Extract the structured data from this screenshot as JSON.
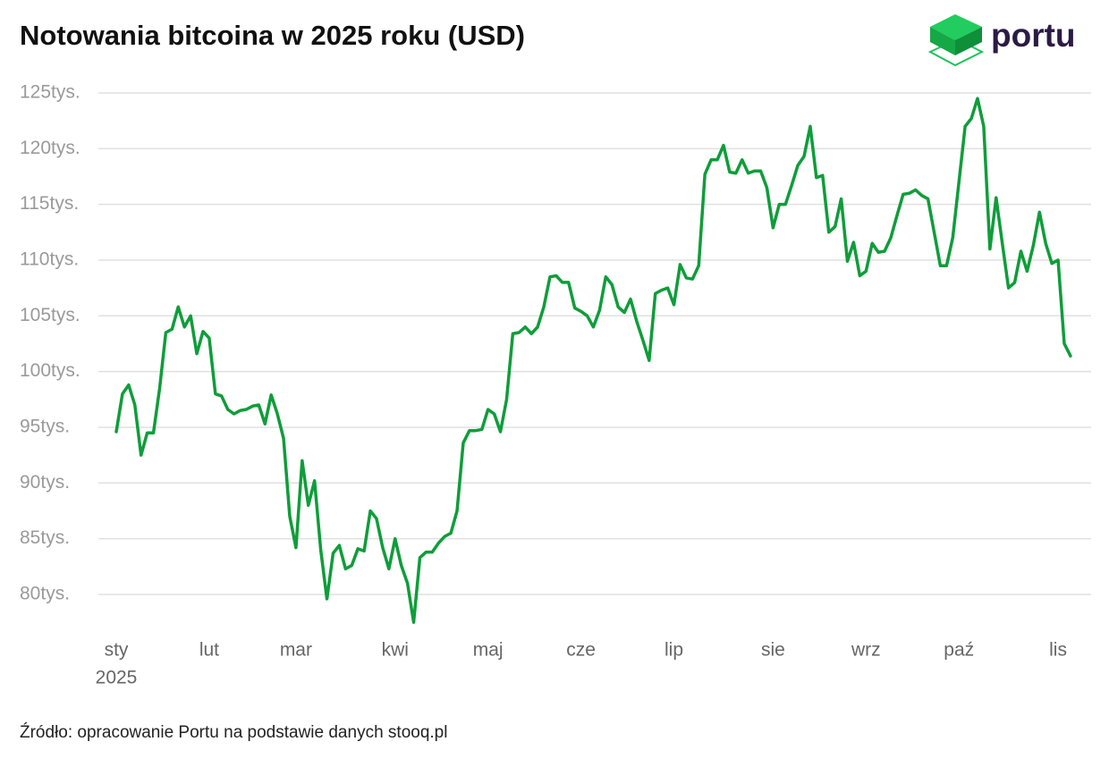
{
  "logo": "portu",
  "chart_data": {
    "type": "line",
    "title": "Notowania bitcoina w 2025 roku (USD)",
    "source": "Źródło: opracowanie Portu na podstawie danych stooq.pl",
    "year_label": "2025",
    "categories": [
      "sty",
      null,
      null,
      null,
      null,
      null,
      null,
      null,
      null,
      null,
      null,
      null,
      null,
      null,
      null,
      "lut",
      null,
      null,
      null,
      null,
      null,
      null,
      null,
      null,
      null,
      null,
      null,
      null,
      null,
      "mar",
      null,
      null,
      null,
      null,
      null,
      null,
      null,
      null,
      null,
      null,
      null,
      null,
      null,
      null,
      null,
      "kwi",
      null,
      null,
      null,
      null,
      null,
      null,
      null,
      null,
      null,
      null,
      null,
      null,
      null,
      null,
      "maj",
      null,
      null,
      null,
      null,
      null,
      null,
      null,
      null,
      null,
      null,
      null,
      null,
      null,
      null,
      "cze",
      null,
      null,
      null,
      null,
      null,
      null,
      null,
      null,
      null,
      null,
      null,
      null,
      null,
      null,
      "lip",
      null,
      null,
      null,
      null,
      null,
      null,
      null,
      null,
      null,
      null,
      null,
      null,
      null,
      null,
      null,
      "sie",
      null,
      null,
      null,
      null,
      null,
      null,
      null,
      null,
      null,
      null,
      null,
      null,
      null,
      null,
      "wrz",
      null,
      null,
      null,
      null,
      null,
      null,
      null,
      null,
      null,
      null,
      null,
      null,
      null,
      null,
      "paź",
      null,
      null,
      null,
      null,
      null,
      null,
      null,
      null,
      null,
      null,
      null,
      null,
      null,
      null,
      null,
      "lis",
      null,
      null
    ],
    "series": [
      {
        "color": "#0f9d3a",
        "values": [
          94600,
          98000,
          98800,
          97000,
          92500,
          94500,
          94500,
          98500,
          103500,
          103800,
          105800,
          104000,
          105000,
          101600,
          103600,
          103000,
          98000,
          97800,
          96600,
          96200,
          96500,
          96600,
          96900,
          97000,
          95300,
          97900,
          96200,
          94000,
          87000,
          84200,
          92000,
          88000,
          90200,
          84000,
          79600,
          83700,
          84400,
          82300,
          82600,
          84100,
          83900,
          87500,
          86800,
          84200,
          82300,
          85000,
          82600,
          81000,
          77500,
          83300,
          83800,
          83800,
          84600,
          85200,
          85500,
          87500,
          93600,
          94700,
          94700,
          94800,
          96600,
          96200,
          94600,
          97500,
          103400,
          103500,
          104000,
          103400,
          104000,
          105800,
          108500,
          108600,
          108000,
          108000,
          105700,
          105400,
          105000,
          104000,
          105500,
          108500,
          107800,
          105800,
          105300,
          106500,
          104500,
          102800,
          101000,
          107000,
          107300,
          107500,
          106000,
          109600,
          108400,
          108300,
          109500,
          117700,
          119000,
          119000,
          120300,
          117900,
          117800,
          119000,
          117800,
          118000,
          118000,
          116500,
          112900,
          115000,
          115000,
          116700,
          118500,
          119300,
          122000,
          117400,
          117600,
          112500,
          113000,
          115500,
          109900,
          111600,
          108600,
          109000,
          111500,
          110700,
          110800,
          112000,
          114000,
          115900,
          116000,
          116300,
          115800,
          115500,
          112500,
          109500,
          109500,
          112000,
          117000,
          122000,
          122700,
          124500,
          122000,
          111000,
          115600,
          111500,
          107500,
          108000,
          110800,
          109000,
          111300,
          114300,
          111500,
          109700,
          110000,
          102500,
          101400
        ]
      }
    ],
    "ylim": [
      76500,
      126000
    ],
    "yticks": [
      {
        "value": 80000,
        "label": "80tys."
      },
      {
        "value": 85000,
        "label": "85tys."
      },
      {
        "value": 90000,
        "label": "90tys."
      },
      {
        "value": 95000,
        "label": "95tys."
      },
      {
        "value": 100000,
        "label": "100tys."
      },
      {
        "value": 105000,
        "label": "105tys."
      },
      {
        "value": 110000,
        "label": "110tys."
      },
      {
        "value": 115000,
        "label": "115tys."
      },
      {
        "value": 120000,
        "label": "120tys."
      },
      {
        "value": 125000,
        "label": "125tys."
      }
    ],
    "grid": true
  }
}
